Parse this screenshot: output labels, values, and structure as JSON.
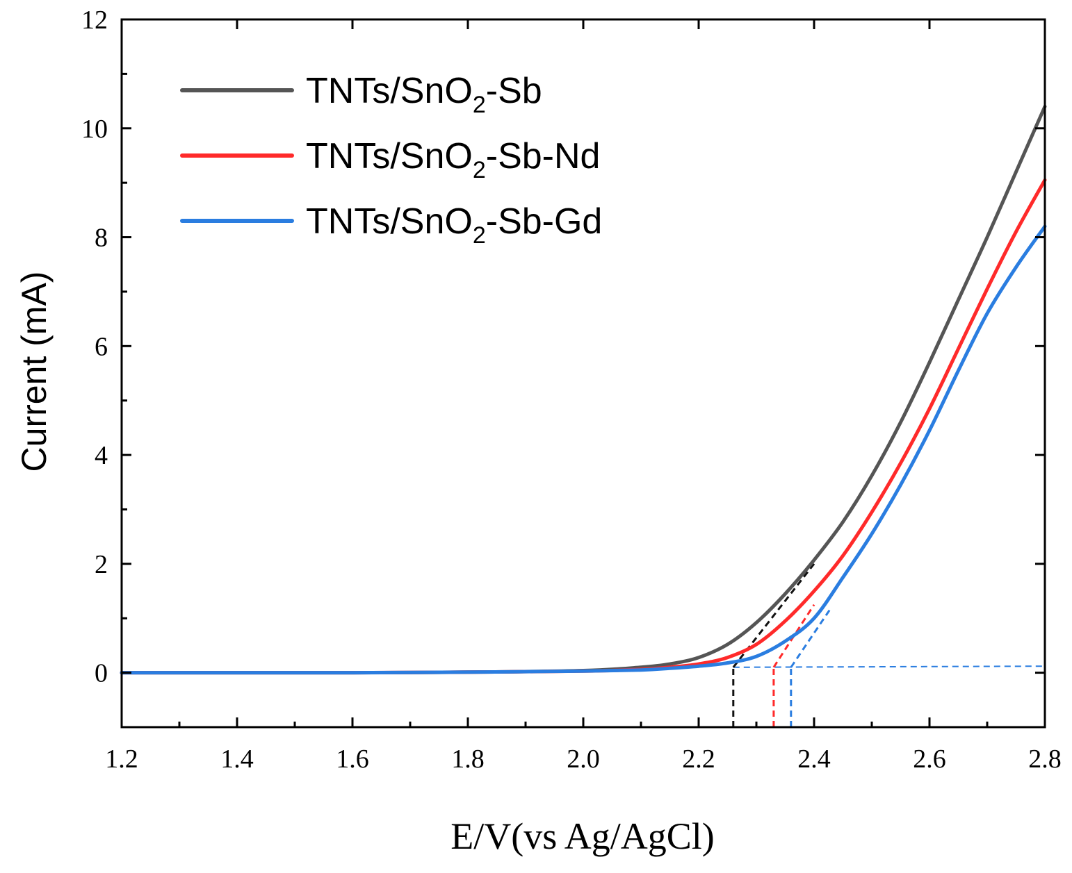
{
  "chart_data": {
    "type": "line",
    "title": "",
    "xlabel": "E/V(vs Ag/AgCl)",
    "ylabel": "Current (mA)",
    "xlim": [
      1.2,
      2.8
    ],
    "ylim": [
      -1,
      12
    ],
    "xticks": [
      1.2,
      1.4,
      1.6,
      1.8,
      2.0,
      2.2,
      2.4,
      2.6,
      2.8
    ],
    "xtick_labels": [
      "1.2",
      "1.4",
      "1.6",
      "1.8",
      "2.0",
      "2.2",
      "2.4",
      "2.6",
      "2.8"
    ],
    "yticks": [
      0,
      2,
      4,
      6,
      8,
      10,
      12
    ],
    "ytick_labels": [
      "0",
      "2",
      "4",
      "6",
      "8",
      "10",
      "12"
    ],
    "grid": false,
    "legend_position": "top-left",
    "series": [
      {
        "name": "TNTs/SnO2-Sb",
        "legend_parts": [
          "TNTs/SnO",
          "2",
          "-Sb"
        ],
        "color": "#555555",
        "x": [
          1.2,
          1.4,
          1.6,
          1.8,
          2.0,
          2.1,
          2.15,
          2.2,
          2.25,
          2.3,
          2.35,
          2.4,
          2.45,
          2.5,
          2.55,
          2.6,
          2.65,
          2.7,
          2.75,
          2.8
        ],
        "y": [
          0,
          0,
          0,
          0.01,
          0.04,
          0.1,
          0.16,
          0.28,
          0.52,
          0.92,
          1.45,
          2.07,
          2.77,
          3.62,
          4.6,
          5.7,
          6.85,
          8.0,
          9.2,
          10.4
        ]
      },
      {
        "name": "TNTs/SnO2-Sb-Nd",
        "legend_parts": [
          "TNTs/SnO",
          "2",
          "-Sb-Nd"
        ],
        "color": "#ff2a2a",
        "x": [
          1.2,
          1.4,
          1.6,
          1.8,
          2.0,
          2.1,
          2.15,
          2.2,
          2.25,
          2.3,
          2.35,
          2.4,
          2.45,
          2.5,
          2.55,
          2.6,
          2.65,
          2.7,
          2.75,
          2.8
        ],
        "y": [
          0,
          0,
          0,
          0.01,
          0.03,
          0.06,
          0.1,
          0.16,
          0.28,
          0.52,
          0.95,
          1.5,
          2.15,
          2.95,
          3.85,
          4.85,
          5.95,
          7.05,
          8.1,
          9.05
        ]
      },
      {
        "name": "TNTs/SnO2-Sb-Gd",
        "legend_parts": [
          "TNTs/SnO",
          "2",
          "-Sb-Gd"
        ],
        "color": "#2a7de0",
        "x": [
          1.2,
          1.4,
          1.6,
          1.8,
          2.0,
          2.1,
          2.15,
          2.2,
          2.25,
          2.3,
          2.35,
          2.4,
          2.45,
          2.5,
          2.55,
          2.6,
          2.65,
          2.7,
          2.75,
          2.8
        ],
        "y": [
          0,
          0,
          0,
          0.01,
          0.03,
          0.05,
          0.08,
          0.12,
          0.18,
          0.3,
          0.58,
          1.0,
          1.75,
          2.55,
          3.45,
          4.45,
          5.55,
          6.6,
          7.45,
          8.2
        ]
      }
    ],
    "onset_guides": [
      {
        "color": "#111111",
        "onset_x": 2.26,
        "tangent_x": [
          2.26,
          2.4
        ],
        "tangent_y": [
          0.1,
          2.0
        ]
      },
      {
        "color": "#ff2a2a",
        "onset_x": 2.33,
        "tangent_x": [
          2.33,
          2.4
        ],
        "tangent_y": [
          0.1,
          1.25
        ]
      },
      {
        "color": "#2a7de0",
        "onset_x": 2.36,
        "tangent_x": [
          2.36,
          2.43
        ],
        "tangent_y": [
          0.1,
          1.2
        ]
      }
    ],
    "baseline_guide": {
      "color": "#2a7de0",
      "x": [
        2.26,
        2.8
      ],
      "y": [
        0.1,
        0.12
      ]
    }
  }
}
